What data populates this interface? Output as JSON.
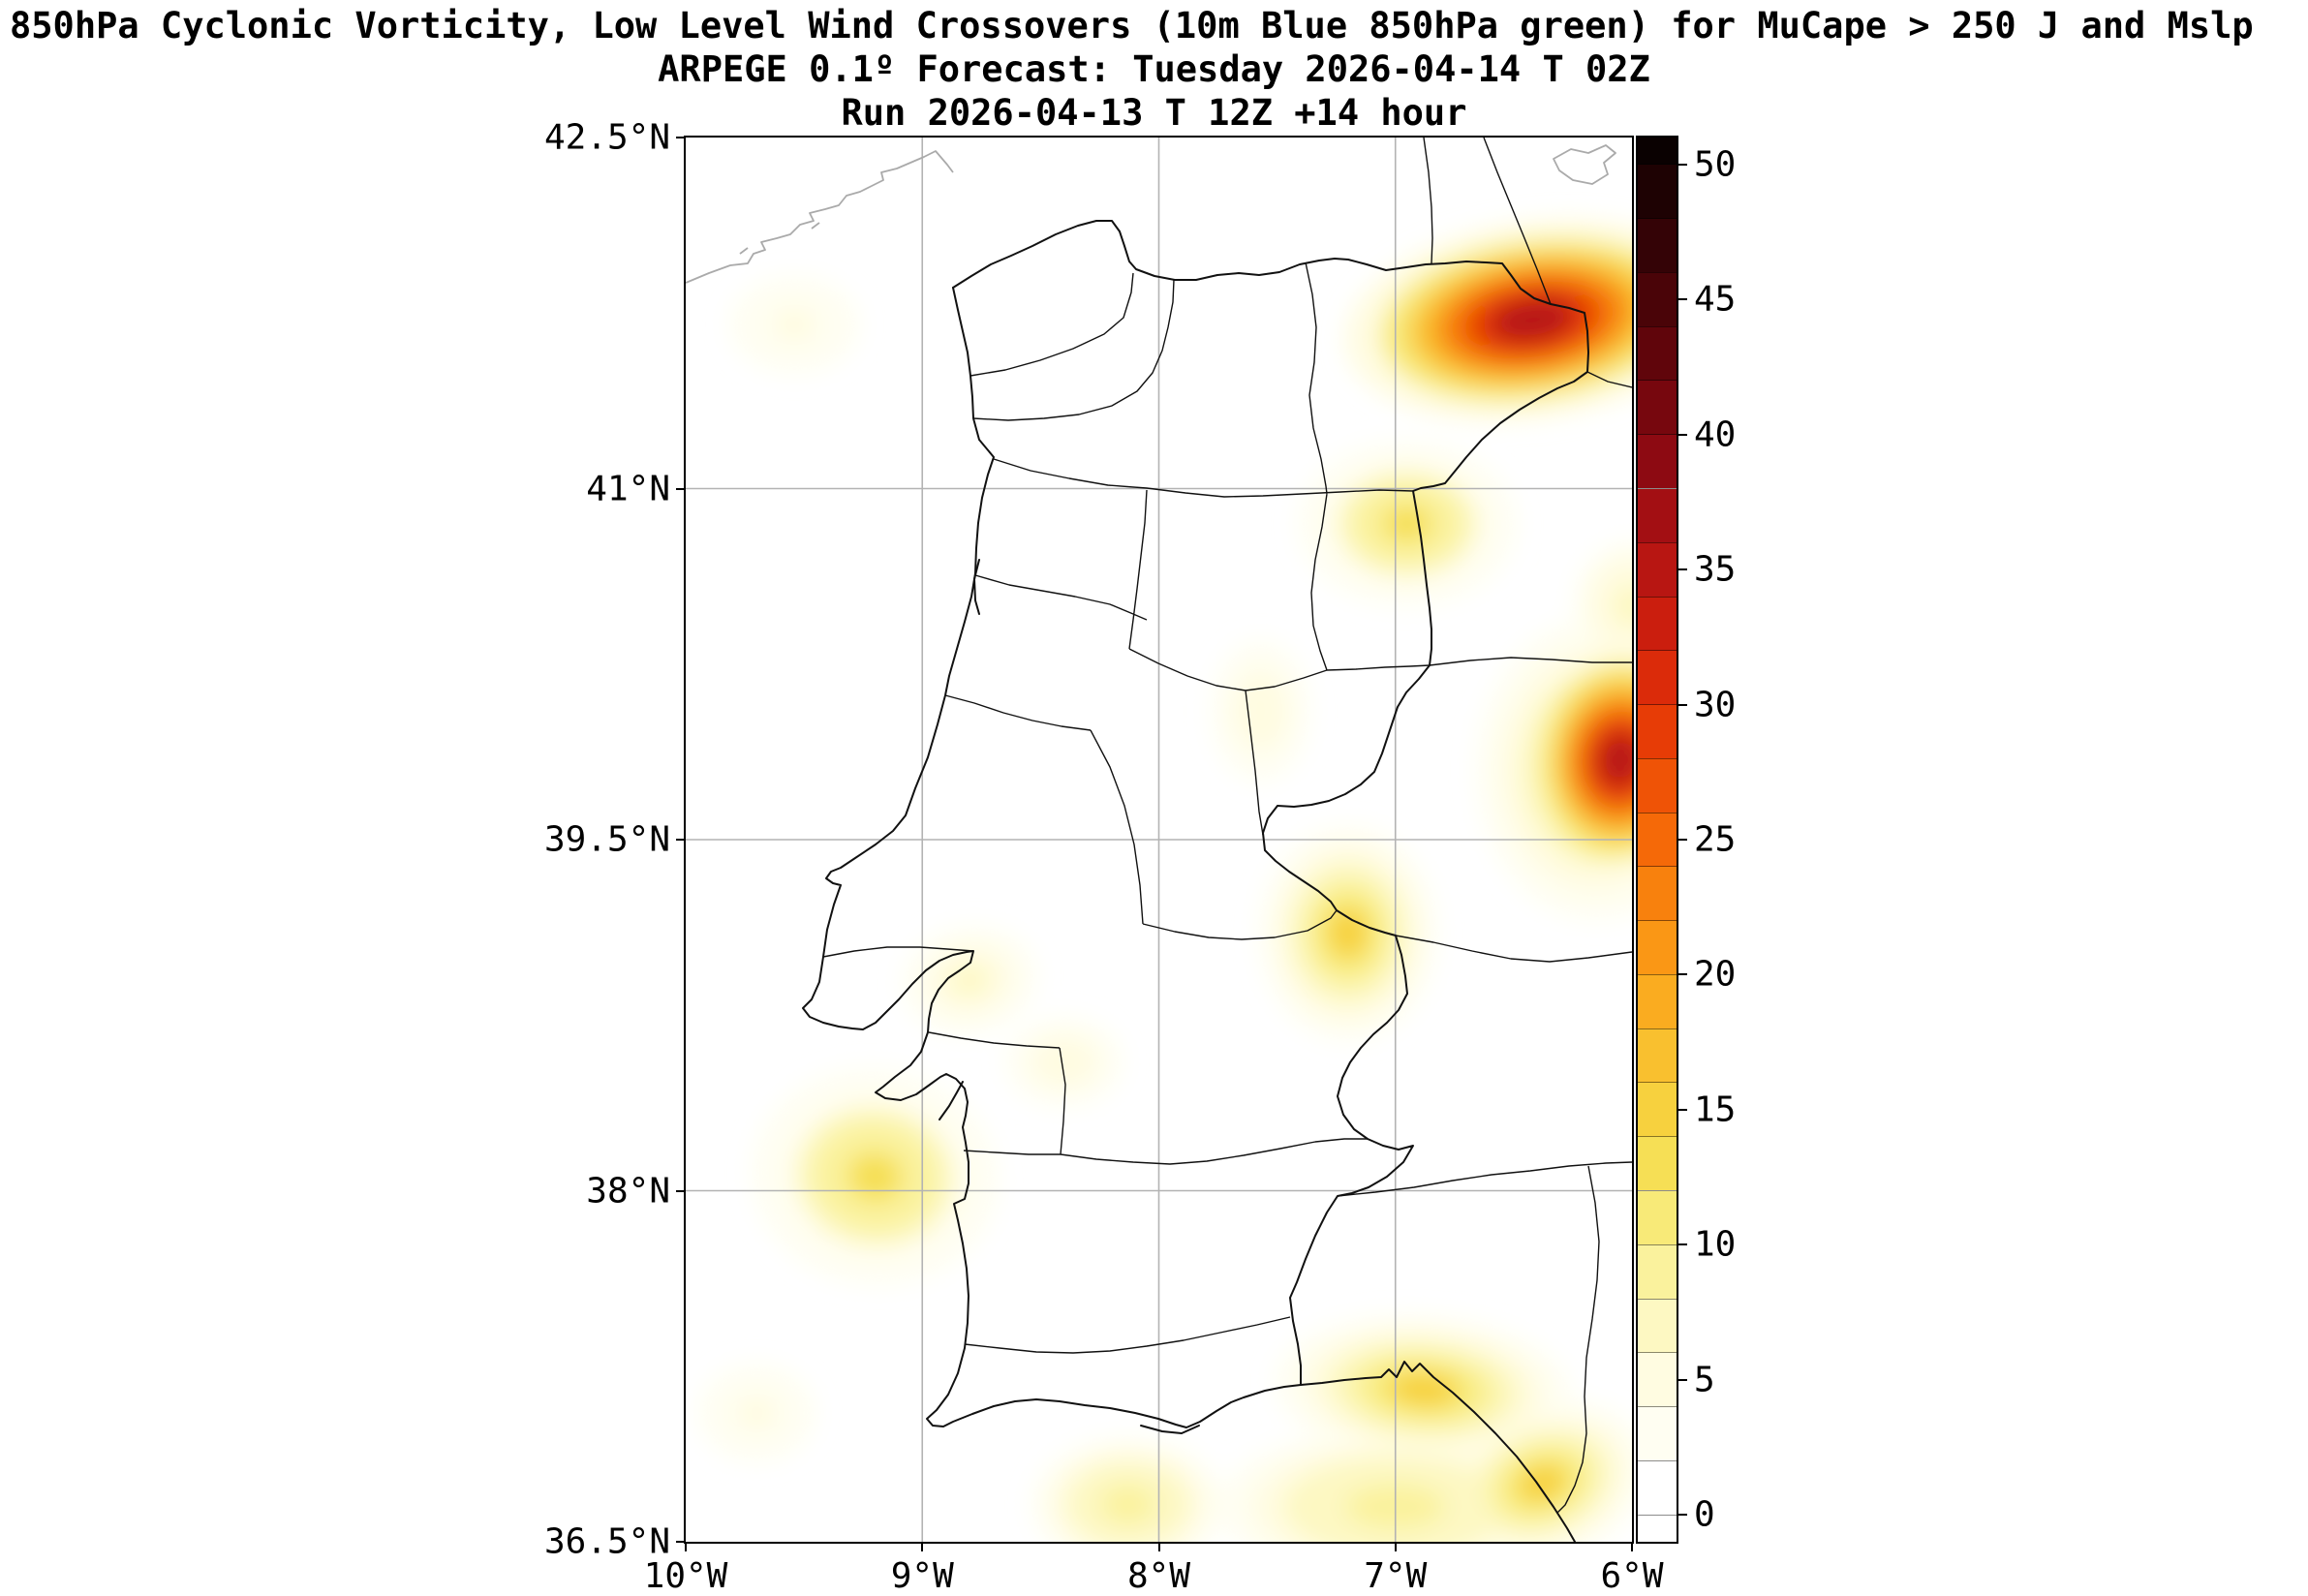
{
  "title": {
    "line1": "850hPa Cyclonic Vorticity, Low Level Wind Crossovers (10m Blue 850hPa green) for MuCape > 250 J and Mslp",
    "line2": "ARPEGE 0.1º Forecast: Tuesday 2026-04-14 T 02Z",
    "line3": "Run 2026-04-13 T 12Z +14 hour"
  },
  "chart_data": {
    "type": "heatmap",
    "subtype": "filled-contour meteorological map",
    "region": "Western Iberian Peninsula (Portugal and western Spain)",
    "model": "ARPEGE 0.1º",
    "valid_time": "Tuesday 2026-04-14 T 02Z",
    "run_time": "2026-04-13 T 12Z",
    "lead_hours": 14,
    "x_axis": {
      "range": [
        -10,
        -6
      ],
      "ticks": [
        {
          "value": -10,
          "label": "10°W"
        },
        {
          "value": -9,
          "label": "9°W"
        },
        {
          "value": -8,
          "label": "8°W"
        },
        {
          "value": -7,
          "label": "7°W"
        },
        {
          "value": -6,
          "label": "6°W"
        }
      ],
      "gridlines": [
        -9,
        -8,
        -7
      ]
    },
    "y_axis": {
      "range": [
        36.5,
        42.5
      ],
      "ticks": [
        {
          "value": 42.5,
          "label": "42.5°N"
        },
        {
          "value": 41,
          "label": "41°N"
        },
        {
          "value": 39.5,
          "label": "39.5°N"
        },
        {
          "value": 38,
          "label": "38°N"
        },
        {
          "value": 36.5,
          "label": "36.5°N"
        }
      ],
      "gridlines": [
        41,
        39.5,
        38
      ]
    },
    "colorbar": {
      "range": [
        -1,
        51
      ],
      "tick_labels": [
        0,
        5,
        10,
        15,
        20,
        25,
        30,
        35,
        40,
        45,
        50
      ],
      "level_step": 2,
      "boundaries": [
        -1,
        0,
        2,
        4,
        6,
        8,
        10,
        12,
        14,
        16,
        18,
        20,
        22,
        24,
        26,
        28,
        30,
        32,
        34,
        36,
        38,
        40,
        42,
        44,
        46,
        48,
        50,
        51
      ],
      "colors": [
        "#ffffff",
        "#ffffff",
        "#fffef2",
        "#fffce1",
        "#fdf8c2",
        "#faf29d",
        "#f8ea78",
        "#f6df55",
        "#f7d13e",
        "#f9c02f",
        "#faac20",
        "#fa9715",
        "#f8810d",
        "#f56908",
        "#ef5306",
        "#e73c06",
        "#db2b0a",
        "#cb1e0e",
        "#b81612",
        "#a30f13",
        "#8d0a12",
        "#77070e",
        "#60050b",
        "#4a0408",
        "#340306",
        "#1e0203",
        "#0a0101"
      ]
    },
    "hotspots": [
      {
        "lon": -6.42,
        "lat": 41.72,
        "value": 34,
        "rx_deg": 0.95,
        "ry_deg": 0.5,
        "rot_deg": -8,
        "note": "strong vorticity max NE (near 6.4W 41.7N)"
      },
      {
        "lon": -6.05,
        "lat": 39.84,
        "value": 34,
        "rx_deg": 0.5,
        "ry_deg": 0.62,
        "rot_deg": 6,
        "note": "strong vorticity max at east edge (near 6W 39.8N)"
      },
      {
        "lon": -6.95,
        "lat": 40.85,
        "value": 12,
        "rx_deg": 0.55,
        "ry_deg": 0.42,
        "rot_deg": 0,
        "note": "moderate patch near 7W 41N"
      },
      {
        "lon": -7.2,
        "lat": 39.1,
        "value": 14,
        "rx_deg": 0.45,
        "ry_deg": 0.55,
        "rot_deg": 0,
        "note": "yellow patch central-east"
      },
      {
        "lon": -6.88,
        "lat": 37.15,
        "value": 14,
        "rx_deg": 0.75,
        "ry_deg": 0.38,
        "rot_deg": 4,
        "note": "yellow band along south coast"
      },
      {
        "lon": -6.38,
        "lat": 36.75,
        "value": 14,
        "rx_deg": 0.55,
        "ry_deg": 0.4,
        "rot_deg": -20,
        "note": "yellow patch SE corner"
      },
      {
        "lon": -8.13,
        "lat": 36.66,
        "value": 9,
        "rx_deg": 0.6,
        "ry_deg": 0.42,
        "rot_deg": 0,
        "note": "pale yellow south of Algarve"
      },
      {
        "lon": -9.2,
        "lat": 38.06,
        "value": 12,
        "rx_deg": 0.62,
        "ry_deg": 0.55,
        "rot_deg": 8,
        "note": "yellow patch SW coast"
      },
      {
        "lon": -9.54,
        "lat": 41.7,
        "value": 4,
        "rx_deg": 0.5,
        "ry_deg": 0.38,
        "rot_deg": 0,
        "note": "faint patch NW offshore"
      },
      {
        "lon": -9.7,
        "lat": 37.05,
        "value": 4,
        "rx_deg": 0.45,
        "ry_deg": 0.38,
        "rot_deg": 0,
        "note": "faint patch SW offshore"
      },
      {
        "lon": -8.8,
        "lat": 38.9,
        "value": 7,
        "rx_deg": 0.42,
        "ry_deg": 0.34,
        "rot_deg": -10,
        "note": "pale patch near Lisbon"
      },
      {
        "lon": -8.4,
        "lat": 38.55,
        "value": 5,
        "rx_deg": 0.45,
        "ry_deg": 0.35,
        "rot_deg": 0,
        "note": "pale patch SE of Lisbon"
      },
      {
        "lon": -7.57,
        "lat": 40.05,
        "value": 5,
        "rx_deg": 0.38,
        "ry_deg": 0.55,
        "rot_deg": 0,
        "note": "pale streak"
      },
      {
        "lon": -6.15,
        "lat": 39.8,
        "value": 10,
        "rx_deg": 0.75,
        "ry_deg": 0.95,
        "rot_deg": 0,
        "note": "broad halo around east-edge max"
      },
      {
        "lon": -7.0,
        "lat": 36.65,
        "value": 9,
        "rx_deg": 1.1,
        "ry_deg": 0.5,
        "rot_deg": 0,
        "note": "broad pale halo Gulf of Cadiz"
      },
      {
        "lon": -6.0,
        "lat": 40.5,
        "value": 6,
        "rx_deg": 0.45,
        "ry_deg": 0.5,
        "rot_deg": 0,
        "note": "pale patch east edge"
      }
    ],
    "style_colors": {
      "gridline": "#b3b3b3",
      "coastline_secondary": "#aaaaaa",
      "boundaries": "#111111",
      "frame": "#000000"
    }
  }
}
